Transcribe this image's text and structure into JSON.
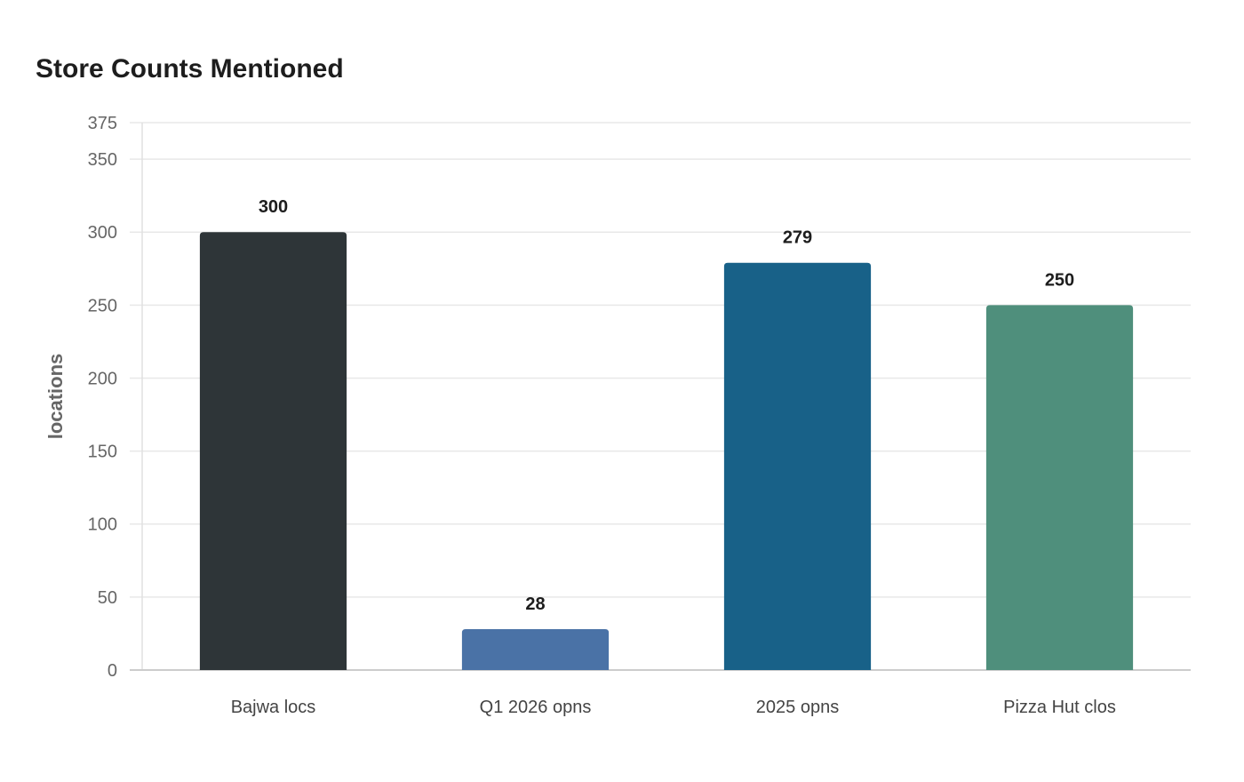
{
  "chart_data": {
    "type": "bar",
    "title": "Store Counts Mentioned",
    "xlabel": "",
    "ylabel": "locations",
    "categories": [
      "Bajwa locs",
      "Q1 2026 opns",
      "2025 opns",
      "Pizza Hut clos"
    ],
    "values": [
      300,
      28,
      279,
      250
    ],
    "colors": [
      "#2e3538",
      "#4a72a6",
      "#186188",
      "#4f8f7c"
    ],
    "ylim": [
      0,
      375
    ],
    "yticks": [
      0,
      50,
      100,
      150,
      200,
      250,
      300,
      350,
      375
    ],
    "grid": true,
    "data_labels": true
  }
}
